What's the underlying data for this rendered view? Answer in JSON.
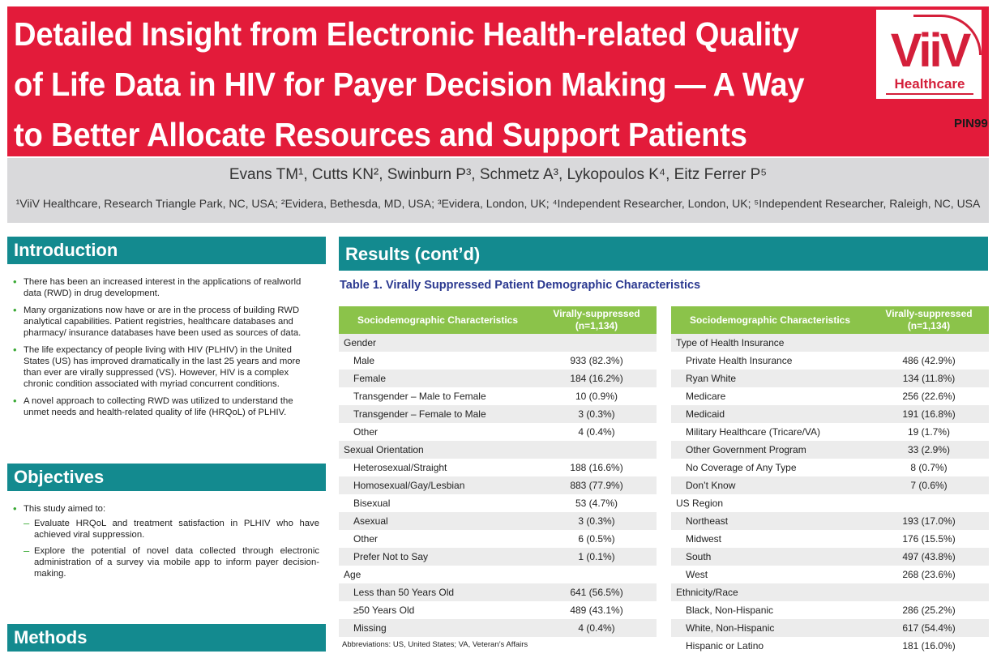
{
  "header": {
    "title": "Detailed Insight from Electronic Health-related Quality of Life Data in HIV for Payer Decision Making — A Way to Better Allocate Resources and Support Patients",
    "logo_text": "ViiV",
    "logo_sub": "Healthcare",
    "code": "PIN99",
    "authors": "Evans TM¹, Cutts KN², Swinburn P³, Schmetz A³, Lykopoulos K⁴, Eitz Ferrer P⁵",
    "affiliations": "¹ViiV Healthcare, Research Triangle Park, NC, USA; ²Evidera, Bethesda, MD, USA; ³Evidera, London, UK; ⁴Independent Researcher, London, UK; ⁵Independent Researcher, Raleigh, NC, USA",
    "banner_color": "#e31b3a"
  },
  "introduction": {
    "heading": "Introduction",
    "items": [
      "There has been an increased interest in the applications of realworld data (RWD) in drug development.",
      "Many organizations now have or are in the process of building RWD analytical capabilities. Patient registries, healthcare databases and pharmacy/ insurance databases have been used as sources of data.",
      "The life expectancy of people living with HIV (PLHIV) in the United States (US) has improved dramatically in the last 25 years and more than ever are virally suppressed (VS). However, HIV is a complex chronic condition associated with myriad concurrent conditions.",
      "A novel approach to collecting RWD was utilized to understand the unmet needs and health-related quality of life (HRQoL) of PLHIV."
    ]
  },
  "objectives": {
    "heading": "Objectives",
    "lead": "This study aimed to:",
    "items": [
      "Evaluate HRQoL and treatment satisfaction in PLHIV who have achieved viral suppression.",
      "Explore the potential of novel data collected through electronic administration of a survey via mobile app to inform payer decision-making."
    ]
  },
  "methods": {
    "heading": "Methods"
  },
  "results": {
    "heading": "Results (cont’d)",
    "table_caption": "Table 1.    Virally Suppressed Patient Demographic Characteristics",
    "col1": "Sociodemographic Characteristics",
    "col2_line1": "Virally-suppressed",
    "col2_line2": "(n=1,134)",
    "abbreviations": "Abbreviations: US, United States; VA, Veteran’s Affairs",
    "left_rows": [
      {
        "label": "Gender",
        "value": "",
        "group": true
      },
      {
        "label": "Male",
        "value": "933 (82.3%)"
      },
      {
        "label": "Female",
        "value": "184 (16.2%)"
      },
      {
        "label": "Transgender – Male to Female",
        "value": "10 (0.9%)"
      },
      {
        "label": "Transgender – Female to Male",
        "value": "3 (0.3%)"
      },
      {
        "label": "Other",
        "value": "4 (0.4%)"
      },
      {
        "label": "Sexual Orientation",
        "value": "",
        "group": true
      },
      {
        "label": "Heterosexual/Straight",
        "value": "188 (16.6%)"
      },
      {
        "label": "Homosexual/Gay/Lesbian",
        "value": "883 (77.9%)"
      },
      {
        "label": "Bisexual",
        "value": "53 (4.7%)"
      },
      {
        "label": "Asexual",
        "value": "3 (0.3%)"
      },
      {
        "label": "Other",
        "value": "6 (0.5%)"
      },
      {
        "label": "Prefer Not to Say",
        "value": "1 (0.1%)"
      },
      {
        "label": "Age",
        "value": "",
        "group": true
      },
      {
        "label": "Less than 50 Years Old",
        "value": "641 (56.5%)"
      },
      {
        "label": "≥50 Years Old",
        "value": "489 (43.1%)"
      },
      {
        "label": "Missing",
        "value": "4 (0.4%)"
      }
    ],
    "right_rows": [
      {
        "label": "Type of Health Insurance",
        "value": "",
        "group": true
      },
      {
        "label": "Private Health Insurance",
        "value": "486 (42.9%)"
      },
      {
        "label": "Ryan White",
        "value": "134 (11.8%)"
      },
      {
        "label": "Medicare",
        "value": "256 (22.6%)"
      },
      {
        "label": "Medicaid",
        "value": "191 (16.8%)"
      },
      {
        "label": "Military Healthcare (Tricare/VA)",
        "value": "19 (1.7%)"
      },
      {
        "label": "Other Government Program",
        "value": "33 (2.9%)"
      },
      {
        "label": "No Coverage of Any Type",
        "value": "8 (0.7%)"
      },
      {
        "label": "Don’t Know",
        "value": "7 (0.6%)"
      },
      {
        "label": "US Region",
        "value": "",
        "group": true
      },
      {
        "label": "Northeast",
        "value": "193 (17.0%)"
      },
      {
        "label": "Midwest",
        "value": "176 (15.5%)"
      },
      {
        "label": "South",
        "value": "497 (43.8%)"
      },
      {
        "label": "West",
        "value": "268 (23.6%)"
      },
      {
        "label": "Ethnicity/Race",
        "value": "",
        "group": true
      },
      {
        "label": "Black, Non-Hispanic",
        "value": "286 (25.2%)"
      },
      {
        "label": "White, Non-Hispanic",
        "value": "617 (54.4%)"
      },
      {
        "label": "Hispanic or Latino",
        "value": "181 (16.0%)"
      }
    ]
  }
}
